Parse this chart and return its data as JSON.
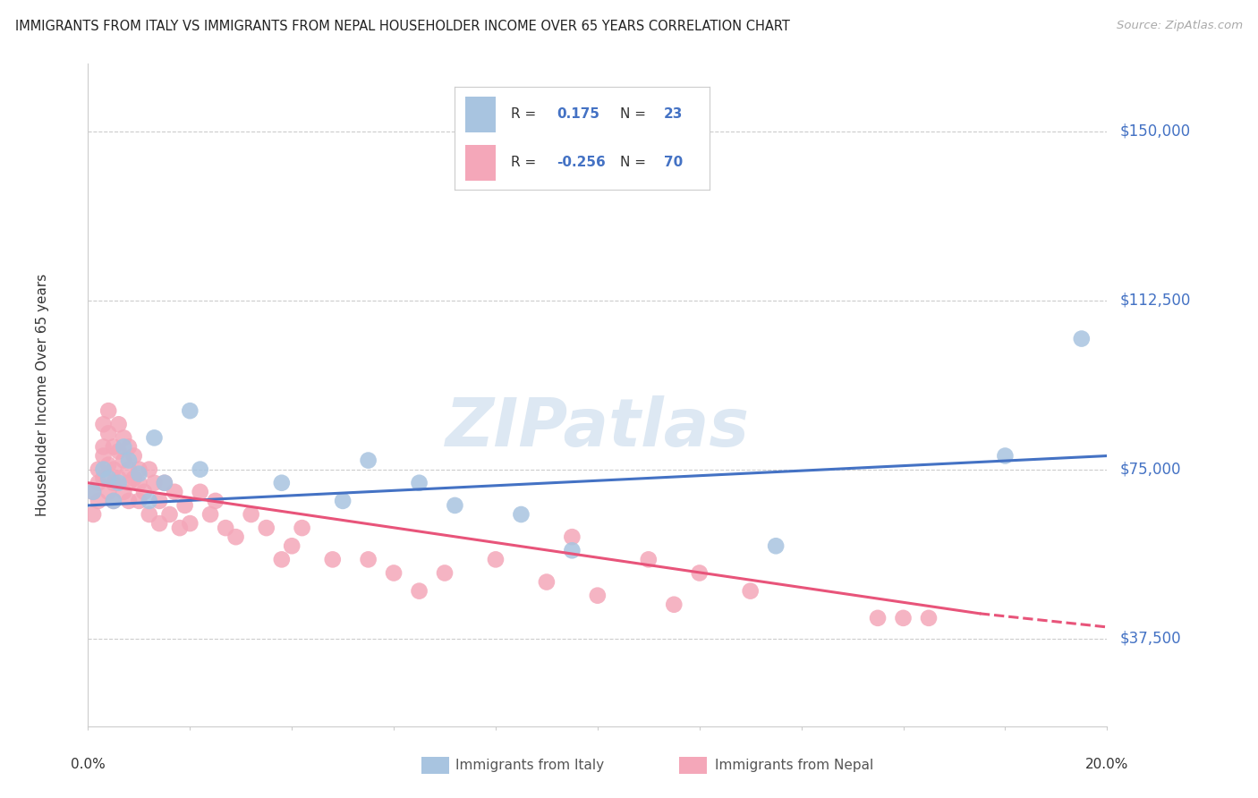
{
  "title": "IMMIGRANTS FROM ITALY VS IMMIGRANTS FROM NEPAL HOUSEHOLDER INCOME OVER 65 YEARS CORRELATION CHART",
  "source": "Source: ZipAtlas.com",
  "ylabel": "Householder Income Over 65 years",
  "y_ticks": [
    37500,
    75000,
    112500,
    150000
  ],
  "y_tick_labels": [
    "$37,500",
    "$75,000",
    "$112,500",
    "$150,000"
  ],
  "xlim": [
    0.0,
    0.2
  ],
  "ylim": [
    18000,
    165000
  ],
  "watermark": "ZIPatlas",
  "italy_R": 0.175,
  "italy_N": 23,
  "nepal_R": -0.256,
  "nepal_N": 70,
  "italy_color": "#a8c4e0",
  "nepal_color": "#f4a7b9",
  "italy_line_color": "#4472C4",
  "nepal_line_color": "#E8547A",
  "italy_points_x": [
    0.001,
    0.003,
    0.004,
    0.005,
    0.006,
    0.007,
    0.008,
    0.01,
    0.012,
    0.013,
    0.015,
    0.02,
    0.022,
    0.038,
    0.05,
    0.055,
    0.065,
    0.072,
    0.085,
    0.095,
    0.135,
    0.18,
    0.195
  ],
  "italy_points_y": [
    70000,
    75000,
    73000,
    68000,
    72000,
    80000,
    77000,
    74000,
    68000,
    82000,
    72000,
    88000,
    75000,
    72000,
    68000,
    77000,
    72000,
    67000,
    65000,
    57000,
    58000,
    78000,
    104000
  ],
  "nepal_points_x": [
    0.001,
    0.001,
    0.002,
    0.002,
    0.002,
    0.003,
    0.003,
    0.003,
    0.003,
    0.004,
    0.004,
    0.004,
    0.004,
    0.005,
    0.005,
    0.005,
    0.005,
    0.006,
    0.006,
    0.006,
    0.007,
    0.007,
    0.007,
    0.008,
    0.008,
    0.008,
    0.008,
    0.009,
    0.009,
    0.01,
    0.01,
    0.01,
    0.011,
    0.012,
    0.012,
    0.013,
    0.014,
    0.014,
    0.015,
    0.016,
    0.017,
    0.018,
    0.019,
    0.02,
    0.022,
    0.024,
    0.025,
    0.027,
    0.029,
    0.032,
    0.035,
    0.038,
    0.04,
    0.042,
    0.048,
    0.055,
    0.06,
    0.065,
    0.07,
    0.08,
    0.09,
    0.095,
    0.1,
    0.11,
    0.115,
    0.12,
    0.13,
    0.155,
    0.16,
    0.165
  ],
  "nepal_points_y": [
    65000,
    70000,
    72000,
    68000,
    75000,
    80000,
    85000,
    78000,
    73000,
    88000,
    83000,
    76000,
    70000,
    80000,
    75000,
    72000,
    68000,
    85000,
    79000,
    73000,
    82000,
    77000,
    70000,
    80000,
    75000,
    72000,
    68000,
    78000,
    73000,
    75000,
    72000,
    68000,
    70000,
    75000,
    65000,
    72000,
    68000,
    63000,
    72000,
    65000,
    70000,
    62000,
    67000,
    63000,
    70000,
    65000,
    68000,
    62000,
    60000,
    65000,
    62000,
    55000,
    58000,
    62000,
    55000,
    55000,
    52000,
    48000,
    52000,
    55000,
    50000,
    60000,
    47000,
    55000,
    45000,
    52000,
    48000,
    42000,
    42000,
    42000
  ]
}
